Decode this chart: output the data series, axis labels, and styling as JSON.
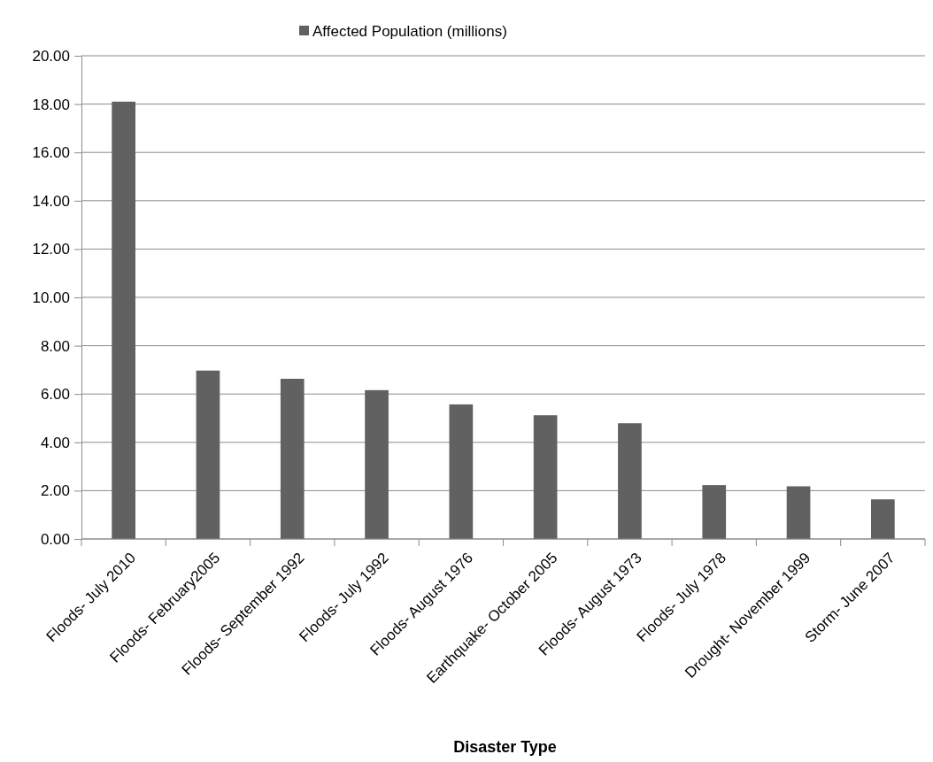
{
  "chart_data": {
    "type": "bar",
    "xlabel": "Disaster Type",
    "categories": [
      "Floods- July 2010",
      "Floods- February2005",
      "Floods- September 1992",
      "Floods- July 1992",
      "Floods- August 1976",
      "Earthquake- October 2005",
      "Floods- August 1973",
      "Floods- July 1978",
      "Drought- November 1999",
      "Storm- June 2007"
    ],
    "series": [
      {
        "name": "Affected Population (millions)",
        "color": "#616161",
        "values": [
          18.1,
          6.97,
          6.63,
          6.16,
          5.57,
          5.12,
          4.79,
          2.23,
          2.18,
          1.64
        ]
      }
    ],
    "ylim": [
      0,
      20
    ],
    "yticks": [
      {
        "value": 0,
        "label": "0.00"
      },
      {
        "value": 2,
        "label": "2.00"
      },
      {
        "value": 4,
        "label": "4.00"
      },
      {
        "value": 6,
        "label": "6.00"
      },
      {
        "value": 8,
        "label": "8.00"
      },
      {
        "value": 10,
        "label": "10.00"
      },
      {
        "value": 12,
        "label": "12.00"
      },
      {
        "value": 14,
        "label": "14.00"
      },
      {
        "value": 16,
        "label": "16.00"
      },
      {
        "value": 18,
        "label": "18.00"
      },
      {
        "value": 20,
        "label": "20.00"
      }
    ],
    "grid": "y",
    "legend": "top"
  }
}
